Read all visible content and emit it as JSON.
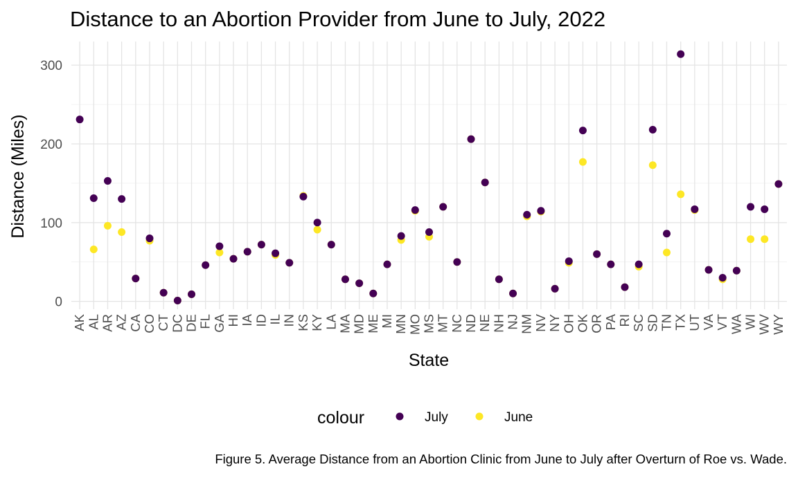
{
  "chart_data": {
    "type": "scatter",
    "title": "Distance to an Abortion Provider from June to July, 2022",
    "xlabel": "State",
    "ylabel": "Distance (Miles)",
    "caption": "Figure 5. Average Distance from an Abortion Clinic from June to July after Overturn of Roe vs. Wade.",
    "categories": [
      "AK",
      "AL",
      "AR",
      "AZ",
      "CA",
      "CO",
      "CT",
      "DC",
      "DE",
      "FL",
      "GA",
      "HI",
      "IA",
      "ID",
      "IL",
      "IN",
      "KS",
      "KY",
      "LA",
      "MA",
      "MD",
      "ME",
      "MI",
      "MN",
      "MO",
      "MS",
      "MT",
      "NC",
      "ND",
      "NE",
      "NH",
      "NJ",
      "NM",
      "NV",
      "NY",
      "OH",
      "OK",
      "OR",
      "PA",
      "RI",
      "SC",
      "SD",
      "TN",
      "TX",
      "UT",
      "VA",
      "VT",
      "WA",
      "WI",
      "WV",
      "WY"
    ],
    "x_positions": [
      "AK",
      "AL",
      "AR",
      "AZ",
      "CA",
      "CO",
      "CT",
      "DC",
      "DE",
      "FL",
      "GA",
      "HI",
      "IA",
      "ID",
      "IL",
      "IN",
      "KS",
      "KY",
      "LA",
      "MA",
      "MD",
      "ME",
      "MI",
      "MN",
      "MO",
      "MS",
      "MT",
      "NC",
      "ND",
      "NE",
      "NH",
      "NJ",
      "NM",
      "NV",
      "NY",
      "OH",
      "OK",
      "OR",
      "PA",
      "RI",
      "SC",
      "SD",
      "TN",
      "TX",
      "UT",
      "VA",
      "VT",
      "WA",
      "WI",
      "WV",
      "WY"
    ],
    "ylim": [
      -10,
      330
    ],
    "yticks": [
      0,
      100,
      200,
      300
    ],
    "grid": true,
    "legend": {
      "title": "colour",
      "position": "bottom"
    },
    "series": [
      {
        "name": "June",
        "color": "#fde725",
        "points": [
          [
            "AL",
            66
          ],
          [
            "AR",
            96
          ],
          [
            "AZ",
            88
          ],
          [
            "CA",
            29
          ],
          [
            "CO",
            77
          ],
          [
            "CT",
            11
          ],
          [
            "DC",
            1
          ],
          [
            "DE",
            9
          ],
          [
            "FL",
            46
          ],
          [
            "GA",
            62
          ],
          [
            "HI",
            54
          ],
          [
            "IA",
            63
          ],
          [
            "ID",
            72
          ],
          [
            "IL",
            59
          ],
          [
            "IN",
            49
          ],
          [
            "KS",
            134
          ],
          [
            "KY",
            91
          ],
          [
            "LA",
            72
          ],
          [
            "MA",
            28
          ],
          [
            "MD",
            23
          ],
          [
            "ME",
            10
          ],
          [
            "MI",
            47
          ],
          [
            "MN",
            78
          ],
          [
            "MO",
            115
          ],
          [
            "MS",
            82
          ],
          [
            "MT",
            120
          ],
          [
            "NC",
            50
          ],
          [
            "ND",
            206
          ],
          [
            "NE",
            151
          ],
          [
            "NH",
            28
          ],
          [
            "NJ",
            10
          ],
          [
            "NM",
            108
          ],
          [
            "NV",
            114
          ],
          [
            "NY",
            16
          ],
          [
            "OH",
            49
          ],
          [
            "OK",
            177
          ],
          [
            "OR",
            60
          ],
          [
            "PA",
            47
          ],
          [
            "RI",
            18
          ],
          [
            "SC",
            44
          ],
          [
            "SD",
            173
          ],
          [
            "TN",
            62
          ],
          [
            "TX",
            136
          ],
          [
            "UT",
            116
          ],
          [
            "VA",
            40
          ],
          [
            "VT",
            28
          ],
          [
            "WA",
            39
          ],
          [
            "WI",
            79
          ],
          [
            "WV",
            79
          ],
          [
            "WY",
            149
          ]
        ]
      },
      {
        "name": "July",
        "color": "#440154",
        "points": [
          [
            "AK",
            231
          ],
          [
            "AL",
            131
          ],
          [
            "AR",
            153
          ],
          [
            "AZ",
            130
          ],
          [
            "CA",
            29
          ],
          [
            "CO",
            80
          ],
          [
            "CT",
            11
          ],
          [
            "DC",
            1
          ],
          [
            "DE",
            9
          ],
          [
            "FL",
            46
          ],
          [
            "GA",
            70
          ],
          [
            "HI",
            54
          ],
          [
            "IA",
            63
          ],
          [
            "ID",
            72
          ],
          [
            "IL",
            61
          ],
          [
            "IN",
            49
          ],
          [
            "KS",
            133
          ],
          [
            "KY",
            100
          ],
          [
            "LA",
            72
          ],
          [
            "MA",
            28
          ],
          [
            "MD",
            23
          ],
          [
            "ME",
            10
          ],
          [
            "MI",
            47
          ],
          [
            "MN",
            83
          ],
          [
            "MO",
            116
          ],
          [
            "MS",
            88
          ],
          [
            "MT",
            120
          ],
          [
            "NC",
            50
          ],
          [
            "ND",
            206
          ],
          [
            "NE",
            151
          ],
          [
            "NH",
            28
          ],
          [
            "NJ",
            10
          ],
          [
            "NM",
            110
          ],
          [
            "NV",
            115
          ],
          [
            "NY",
            16
          ],
          [
            "OH",
            51
          ],
          [
            "OK",
            217
          ],
          [
            "OR",
            60
          ],
          [
            "PA",
            47
          ],
          [
            "RI",
            18
          ],
          [
            "SC",
            47
          ],
          [
            "SD",
            218
          ],
          [
            "TN",
            86
          ],
          [
            "TX",
            314
          ],
          [
            "UT",
            117
          ],
          [
            "VA",
            40
          ],
          [
            "VT",
            30
          ],
          [
            "WA",
            39
          ],
          [
            "WI",
            120
          ],
          [
            "WV",
            117
          ],
          [
            "WY",
            149
          ]
        ]
      }
    ]
  }
}
